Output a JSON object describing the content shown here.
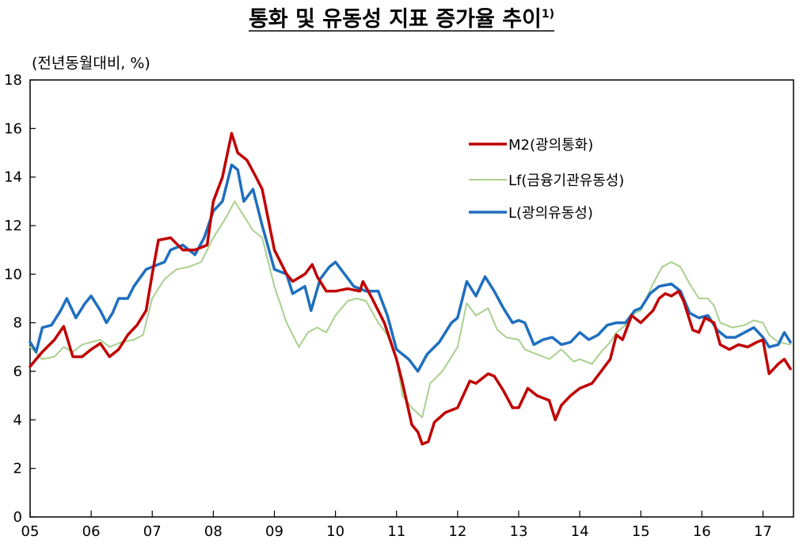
{
  "chart_data": {
    "type": "line",
    "title": "통화 및 유동성 지표 증가율 추이",
    "title_footnote": "1)",
    "unit_label": "(전년동월대비, %)",
    "xlabel": "",
    "ylabel": "",
    "xlim": [
      2005.0,
      2017.5
    ],
    "ylim": [
      0,
      18
    ],
    "y_ticks": [
      "0",
      "2",
      "4",
      "6",
      "8",
      "10",
      "12",
      "14",
      "16",
      "18"
    ],
    "x_ticks": [
      "05",
      "06",
      "07",
      "08",
      "09",
      "10",
      "11",
      "12",
      "13",
      "14",
      "15",
      "16",
      "17"
    ],
    "grid": false,
    "legend_position": "upper-right",
    "series": [
      {
        "name": "M2(광의통화)",
        "color": "#c00000",
        "points": [
          [
            2005.0,
            6.2
          ],
          [
            2005.2,
            6.8
          ],
          [
            2005.4,
            7.3
          ],
          [
            2005.55,
            7.85
          ],
          [
            2005.7,
            6.6
          ],
          [
            2005.85,
            6.6
          ],
          [
            2006.0,
            6.9
          ],
          [
            2006.15,
            7.15
          ],
          [
            2006.3,
            6.6
          ],
          [
            2006.45,
            6.9
          ],
          [
            2006.6,
            7.5
          ],
          [
            2006.75,
            7.9
          ],
          [
            2006.9,
            8.5
          ],
          [
            2007.0,
            10.0
          ],
          [
            2007.1,
            11.4
          ],
          [
            2007.3,
            11.5
          ],
          [
            2007.5,
            11.0
          ],
          [
            2007.7,
            11.0
          ],
          [
            2007.9,
            11.2
          ],
          [
            2008.0,
            13.0
          ],
          [
            2008.15,
            14.0
          ],
          [
            2008.3,
            15.8
          ],
          [
            2008.4,
            15.0
          ],
          [
            2008.55,
            14.7
          ],
          [
            2008.7,
            14.0
          ],
          [
            2008.8,
            13.5
          ],
          [
            2009.0,
            11.0
          ],
          [
            2009.2,
            10.0
          ],
          [
            2009.3,
            9.7
          ],
          [
            2009.5,
            10.0
          ],
          [
            2009.62,
            10.4
          ],
          [
            2009.7,
            9.9
          ],
          [
            2009.85,
            9.3
          ],
          [
            2010.0,
            9.3
          ],
          [
            2010.2,
            9.4
          ],
          [
            2010.4,
            9.3
          ],
          [
            2010.45,
            9.7
          ],
          [
            2010.6,
            9.0
          ],
          [
            2010.8,
            8.0
          ],
          [
            2011.0,
            6.5
          ],
          [
            2011.1,
            5.5
          ],
          [
            2011.25,
            3.8
          ],
          [
            2011.35,
            3.5
          ],
          [
            2011.42,
            3.0
          ],
          [
            2011.52,
            3.1
          ],
          [
            2011.62,
            3.9
          ],
          [
            2011.8,
            4.3
          ],
          [
            2012.0,
            4.5
          ],
          [
            2012.2,
            5.6
          ],
          [
            2012.3,
            5.5
          ],
          [
            2012.5,
            5.9
          ],
          [
            2012.6,
            5.8
          ],
          [
            2012.75,
            5.2
          ],
          [
            2012.9,
            4.5
          ],
          [
            2013.0,
            4.5
          ],
          [
            2013.15,
            5.3
          ],
          [
            2013.3,
            5.0
          ],
          [
            2013.5,
            4.8
          ],
          [
            2013.6,
            4.0
          ],
          [
            2013.7,
            4.6
          ],
          [
            2013.85,
            5.0
          ],
          [
            2014.0,
            5.3
          ],
          [
            2014.2,
            5.5
          ],
          [
            2014.35,
            6.0
          ],
          [
            2014.5,
            6.5
          ],
          [
            2014.6,
            7.5
          ],
          [
            2014.7,
            7.3
          ],
          [
            2014.85,
            8.3
          ],
          [
            2015.0,
            8.0
          ],
          [
            2015.2,
            8.5
          ],
          [
            2015.3,
            9.0
          ],
          [
            2015.4,
            9.2
          ],
          [
            2015.5,
            9.1
          ],
          [
            2015.62,
            9.3
          ],
          [
            2015.7,
            8.9
          ],
          [
            2015.85,
            7.7
          ],
          [
            2015.95,
            7.6
          ],
          [
            2016.05,
            8.2
          ],
          [
            2016.2,
            8.0
          ],
          [
            2016.3,
            7.1
          ],
          [
            2016.45,
            6.9
          ],
          [
            2016.6,
            7.1
          ],
          [
            2016.75,
            7.0
          ],
          [
            2016.9,
            7.2
          ],
          [
            2017.0,
            7.3
          ],
          [
            2017.1,
            5.9
          ],
          [
            2017.25,
            6.3
          ],
          [
            2017.35,
            6.5
          ],
          [
            2017.45,
            6.1
          ]
        ]
      },
      {
        "name": "Lf(금융기관유동성)",
        "color": "#a9d08e",
        "points": [
          [
            2005.0,
            7.0
          ],
          [
            2005.2,
            6.5
          ],
          [
            2005.4,
            6.6
          ],
          [
            2005.55,
            7.0
          ],
          [
            2005.7,
            6.8
          ],
          [
            2005.85,
            7.1
          ],
          [
            2006.0,
            7.2
          ],
          [
            2006.15,
            7.3
          ],
          [
            2006.3,
            7.0
          ],
          [
            2006.5,
            7.2
          ],
          [
            2006.7,
            7.3
          ],
          [
            2006.85,
            7.5
          ],
          [
            2007.0,
            9.0
          ],
          [
            2007.2,
            9.8
          ],
          [
            2007.4,
            10.2
          ],
          [
            2007.6,
            10.3
          ],
          [
            2007.8,
            10.5
          ],
          [
            2008.0,
            11.5
          ],
          [
            2008.2,
            12.3
          ],
          [
            2008.35,
            13.0
          ],
          [
            2008.5,
            12.4
          ],
          [
            2008.65,
            11.8
          ],
          [
            2008.8,
            11.5
          ],
          [
            2009.0,
            9.5
          ],
          [
            2009.2,
            8.0
          ],
          [
            2009.4,
            7.0
          ],
          [
            2009.55,
            7.6
          ],
          [
            2009.7,
            7.8
          ],
          [
            2009.85,
            7.6
          ],
          [
            2010.0,
            8.3
          ],
          [
            2010.2,
            8.9
          ],
          [
            2010.35,
            9.0
          ],
          [
            2010.5,
            8.9
          ],
          [
            2010.7,
            8.0
          ],
          [
            2010.85,
            7.5
          ],
          [
            2011.0,
            6.5
          ],
          [
            2011.1,
            5.0
          ],
          [
            2011.25,
            4.5
          ],
          [
            2011.42,
            4.1
          ],
          [
            2011.55,
            5.5
          ],
          [
            2011.75,
            6.0
          ],
          [
            2012.0,
            7.0
          ],
          [
            2012.15,
            8.8
          ],
          [
            2012.3,
            8.3
          ],
          [
            2012.5,
            8.6
          ],
          [
            2012.65,
            7.7
          ],
          [
            2012.8,
            7.4
          ],
          [
            2013.0,
            7.3
          ],
          [
            2013.1,
            6.9
          ],
          [
            2013.3,
            6.7
          ],
          [
            2013.5,
            6.5
          ],
          [
            2013.7,
            6.9
          ],
          [
            2013.9,
            6.4
          ],
          [
            2014.0,
            6.5
          ],
          [
            2014.2,
            6.3
          ],
          [
            2014.35,
            6.8
          ],
          [
            2014.5,
            7.2
          ],
          [
            2014.6,
            7.6
          ],
          [
            2014.75,
            7.9
          ],
          [
            2014.9,
            8.4
          ],
          [
            2015.0,
            8.5
          ],
          [
            2015.2,
            9.6
          ],
          [
            2015.35,
            10.3
          ],
          [
            2015.5,
            10.5
          ],
          [
            2015.65,
            10.3
          ],
          [
            2015.8,
            9.6
          ],
          [
            2015.95,
            9.0
          ],
          [
            2016.1,
            9.0
          ],
          [
            2016.2,
            8.7
          ],
          [
            2016.3,
            8.0
          ],
          [
            2016.5,
            7.8
          ],
          [
            2016.7,
            7.9
          ],
          [
            2016.85,
            8.1
          ],
          [
            2017.0,
            8.0
          ],
          [
            2017.1,
            7.5
          ],
          [
            2017.25,
            7.2
          ],
          [
            2017.45,
            7.1
          ]
        ]
      },
      {
        "name": "L(광의유동성)",
        "color": "#1f6fbf",
        "points": [
          [
            2005.0,
            7.2
          ],
          [
            2005.1,
            6.8
          ],
          [
            2005.2,
            7.8
          ],
          [
            2005.35,
            7.9
          ],
          [
            2005.5,
            8.5
          ],
          [
            2005.6,
            9.0
          ],
          [
            2005.75,
            8.2
          ],
          [
            2005.9,
            8.8
          ],
          [
            2006.0,
            9.1
          ],
          [
            2006.15,
            8.5
          ],
          [
            2006.25,
            8.0
          ],
          [
            2006.35,
            8.4
          ],
          [
            2006.45,
            9.0
          ],
          [
            2006.6,
            9.0
          ],
          [
            2006.7,
            9.5
          ],
          [
            2006.9,
            10.2
          ],
          [
            2007.0,
            10.3
          ],
          [
            2007.2,
            10.5
          ],
          [
            2007.3,
            11.0
          ],
          [
            2007.5,
            11.2
          ],
          [
            2007.7,
            10.8
          ],
          [
            2007.85,
            11.5
          ],
          [
            2008.0,
            12.6
          ],
          [
            2008.15,
            13.0
          ],
          [
            2008.3,
            14.5
          ],
          [
            2008.4,
            14.3
          ],
          [
            2008.5,
            13.0
          ],
          [
            2008.65,
            13.5
          ],
          [
            2008.8,
            12.0
          ],
          [
            2009.0,
            10.2
          ],
          [
            2009.2,
            10.0
          ],
          [
            2009.3,
            9.2
          ],
          [
            2009.5,
            9.5
          ],
          [
            2009.6,
            8.5
          ],
          [
            2009.75,
            9.8
          ],
          [
            2009.9,
            10.3
          ],
          [
            2010.0,
            10.5
          ],
          [
            2010.15,
            10.0
          ],
          [
            2010.3,
            9.5
          ],
          [
            2010.5,
            9.3
          ],
          [
            2010.7,
            9.3
          ],
          [
            2010.85,
            8.3
          ],
          [
            2011.0,
            6.9
          ],
          [
            2011.2,
            6.5
          ],
          [
            2011.35,
            6.0
          ],
          [
            2011.5,
            6.7
          ],
          [
            2011.7,
            7.2
          ],
          [
            2011.9,
            8.0
          ],
          [
            2012.0,
            8.2
          ],
          [
            2012.15,
            9.7
          ],
          [
            2012.3,
            9.1
          ],
          [
            2012.45,
            9.9
          ],
          [
            2012.6,
            9.3
          ],
          [
            2012.75,
            8.6
          ],
          [
            2012.9,
            8.0
          ],
          [
            2013.0,
            8.1
          ],
          [
            2013.1,
            8.0
          ],
          [
            2013.25,
            7.1
          ],
          [
            2013.4,
            7.3
          ],
          [
            2013.55,
            7.4
          ],
          [
            2013.7,
            7.1
          ],
          [
            2013.85,
            7.2
          ],
          [
            2014.0,
            7.6
          ],
          [
            2014.15,
            7.3
          ],
          [
            2014.3,
            7.5
          ],
          [
            2014.45,
            7.9
          ],
          [
            2014.6,
            8.0
          ],
          [
            2014.75,
            8.0
          ],
          [
            2014.9,
            8.5
          ],
          [
            2015.0,
            8.6
          ],
          [
            2015.15,
            9.2
          ],
          [
            2015.3,
            9.5
          ],
          [
            2015.5,
            9.6
          ],
          [
            2015.65,
            9.3
          ],
          [
            2015.8,
            8.4
          ],
          [
            2015.95,
            8.2
          ],
          [
            2016.1,
            8.3
          ],
          [
            2016.25,
            7.7
          ],
          [
            2016.4,
            7.4
          ],
          [
            2016.55,
            7.4
          ],
          [
            2016.7,
            7.6
          ],
          [
            2016.85,
            7.8
          ],
          [
            2017.0,
            7.4
          ],
          [
            2017.1,
            7.0
          ],
          [
            2017.25,
            7.1
          ],
          [
            2017.35,
            7.6
          ],
          [
            2017.45,
            7.2
          ]
        ]
      }
    ]
  }
}
